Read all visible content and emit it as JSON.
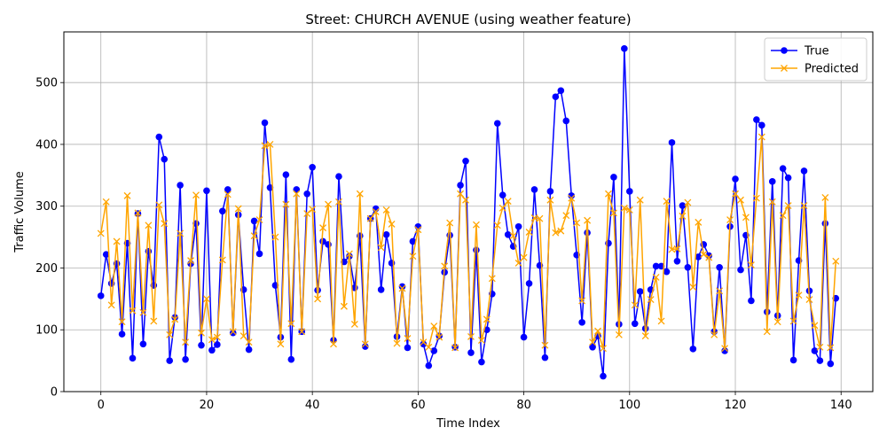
{
  "chart_data": {
    "type": "line",
    "title": "Street: CHURCH AVENUE (using weather feature)",
    "xlabel": "Time Index",
    "ylabel": "Traffic Volume",
    "xlim": [
      -7,
      146
    ],
    "ylim": [
      0,
      582
    ],
    "xticks": [
      0,
      20,
      40,
      60,
      80,
      100,
      120,
      140
    ],
    "yticks": [
      0,
      100,
      200,
      300,
      400,
      500
    ],
    "grid": true,
    "legend_position": "top-right",
    "series": [
      {
        "name": "True",
        "color": "#0000ff",
        "marker": "circle",
        "values": [
          155,
          222,
          175,
          207,
          93,
          240,
          54,
          288,
          77,
          227,
          172,
          412,
          376,
          50,
          120,
          334,
          52,
          207,
          272,
          75,
          325,
          67,
          76,
          292,
          327,
          95,
          286,
          165,
          68,
          276,
          223,
          435,
          330,
          172,
          88,
          351,
          52,
          327,
          97,
          320,
          363,
          164,
          243,
          238,
          83,
          348,
          210,
          219,
          168,
          252,
          73,
          280,
          296,
          165,
          254,
          208,
          89,
          170,
          71,
          243,
          267,
          77,
          42,
          66,
          90,
          193,
          253,
          72,
          334,
          373,
          63,
          229,
          48,
          100,
          158,
          434,
          318,
          254,
          235,
          267,
          88,
          175,
          327,
          204,
          55,
          324,
          477,
          487,
          438,
          317,
          221,
          112,
          257,
          72,
          90,
          25,
          240,
          347,
          109,
          555,
          324,
          110,
          162,
          102,
          165,
          203,
          203,
          194,
          403,
          211,
          301,
          201,
          69,
          218,
          238,
          220,
          97,
          201,
          66,
          267,
          344,
          197,
          253,
          147,
          440,
          431,
          129,
          340,
          123,
          361,
          346,
          51,
          212,
          357,
          163,
          66,
          50,
          272,
          45,
          151
        ]
      },
      {
        "name": "Predicted",
        "color": "#ffa500",
        "marker": "x",
        "values": [
          256,
          307,
          140,
          243,
          113,
          317,
          131,
          289,
          128,
          269,
          114,
          302,
          272,
          92,
          117,
          256,
          80,
          212,
          318,
          95,
          150,
          84,
          88,
          213,
          319,
          97,
          296,
          90,
          80,
          252,
          278,
          398,
          400,
          250,
          77,
          303,
          110,
          320,
          97,
          288,
          295,
          150,
          265,
          303,
          77,
          307,
          138,
          223,
          109,
          320,
          77,
          280,
          291,
          233,
          294,
          271,
          78,
          167,
          86,
          219,
          262,
          80,
          72,
          106,
          88,
          203,
          273,
          71,
          320,
          310,
          89,
          270,
          83,
          117,
          183,
          269,
          297,
          308,
          252,
          208,
          217,
          258,
          281,
          280,
          75,
          310,
          257,
          260,
          285,
          313,
          273,
          147,
          277,
          80,
          98,
          70,
          320,
          289,
          92,
          297,
          294,
          140,
          310,
          90,
          149,
          185,
          114,
          308,
          230,
          231,
          284,
          306,
          169,
          274,
          222,
          217,
          92,
          163,
          70,
          278,
          320,
          310,
          282,
          205,
          313,
          412,
          97,
          307,
          113,
          285,
          301,
          114,
          156,
          301,
          149,
          107,
          72,
          314,
          71,
          211
        ]
      }
    ]
  }
}
